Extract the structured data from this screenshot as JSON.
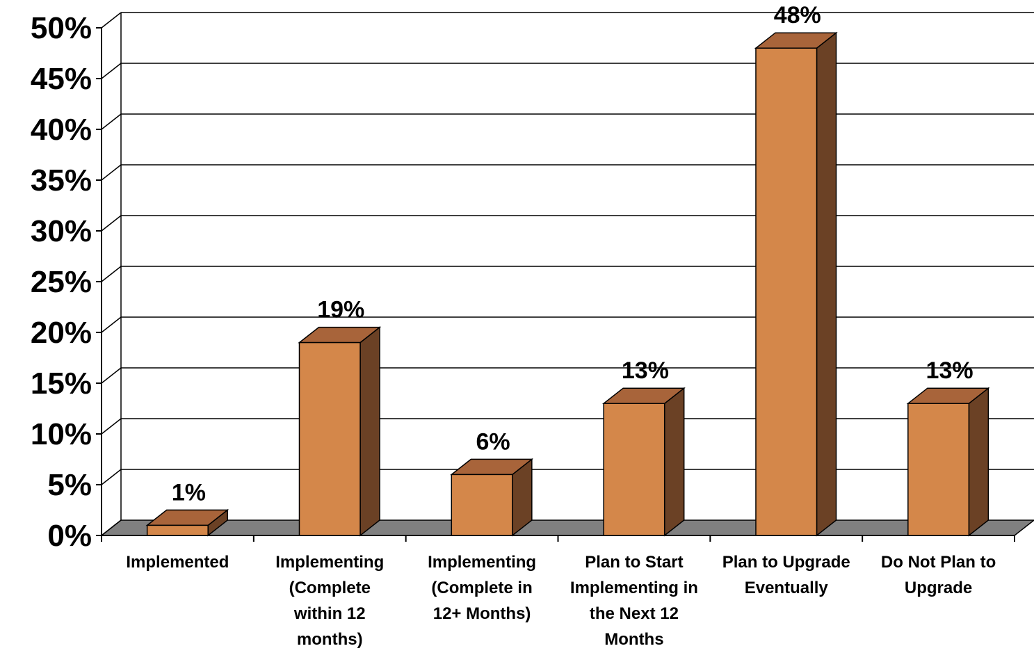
{
  "chart_data": {
    "type": "bar",
    "style": "3d-column",
    "title": "",
    "xlabel": "",
    "ylabel": "",
    "categories": [
      "Implemented",
      "Implementing (Complete within 12 months)",
      "Implementing (Complete in 12+ Months)",
      "Plan to Start Implementing in the Next 12 Months",
      "Plan to Upgrade Eventually",
      "Do Not Plan to Upgrade"
    ],
    "category_lines": [
      [
        "Implemented"
      ],
      [
        "Implementing",
        "(Complete",
        "within 12",
        "months)"
      ],
      [
        "Implementing",
        "(Complete in",
        "12+ Months)"
      ],
      [
        "Plan to Start",
        "Implementing in",
        "the Next 12",
        "Months"
      ],
      [
        "Plan to Upgrade",
        "Eventually"
      ],
      [
        "Do Not Plan to",
        "Upgrade"
      ]
    ],
    "values": [
      1,
      19,
      6,
      13,
      48,
      13
    ],
    "data_labels": [
      "1%",
      "19%",
      "6%",
      "13%",
      "48%",
      "13%"
    ],
    "yticks": [
      "0%",
      "5%",
      "10%",
      "15%",
      "20%",
      "25%",
      "30%",
      "35%",
      "40%",
      "45%",
      "50%"
    ],
    "ylim": [
      0,
      50
    ],
    "grid": true,
    "legend": "none",
    "colors": {
      "bar_front": "#D4874A",
      "bar_top": "#A8643A",
      "bar_side": "#6B4125",
      "floor": "#808080",
      "gridline": "#000000"
    }
  }
}
